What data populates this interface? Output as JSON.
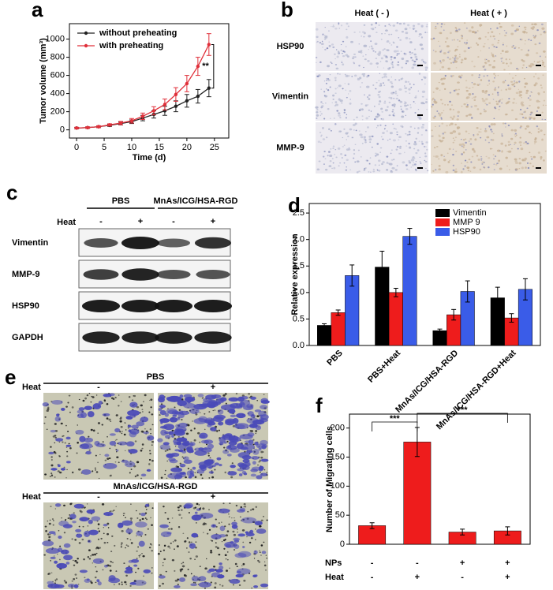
{
  "panel_letters": [
    "a",
    "b",
    "c",
    "d",
    "e",
    "f"
  ],
  "chart_data": [
    {
      "type": "line",
      "xlabel": "Time (d)",
      "ylabel": "Tumor volume (mm³)",
      "x": [
        0,
        2,
        4,
        6,
        8,
        10,
        12,
        14,
        16,
        18,
        20,
        22,
        24
      ],
      "series": [
        {
          "name": "without preheating",
          "color": "#222222",
          "values": [
            20,
            25,
            35,
            50,
            70,
            90,
            130,
            170,
            210,
            260,
            320,
            370,
            460
          ],
          "errors": [
            8,
            8,
            10,
            12,
            15,
            20,
            30,
            40,
            50,
            60,
            70,
            75,
            95
          ]
        },
        {
          "name": "with preheating",
          "color": "#e0303a",
          "values": [
            20,
            25,
            35,
            55,
            75,
            100,
            150,
            210,
            280,
            390,
            510,
            700,
            940
          ],
          "errors": [
            8,
            8,
            10,
            12,
            18,
            25,
            35,
            45,
            60,
            75,
            90,
            100,
            120
          ]
        }
      ],
      "xlim": [
        -1.3,
        27.6
      ],
      "xticks": [
        0,
        5,
        10,
        15,
        20,
        25
      ],
      "ylim": [
        -90,
        1170
      ],
      "yticks": [
        0,
        200,
        400,
        600,
        800,
        1000
      ],
      "legend": "upper left",
      "grid": false,
      "annotations": [
        "**"
      ]
    },
    {
      "type": "bar",
      "ylabel": "Relative expression",
      "categories": [
        "PBS",
        "PBS+Heat",
        "MnAs/ICG/HSA-RGD",
        "MnAs/ICG/HSA-RGD+Heat"
      ],
      "series": [
        {
          "name": "Vimentin",
          "color": "#000000",
          "values": [
            0.38,
            1.48,
            0.28,
            0.9
          ],
          "errors": [
            0.03,
            0.3,
            0.03,
            0.2
          ]
        },
        {
          "name": "MMP 9",
          "color": "#ee1c1c",
          "values": [
            0.62,
            1.0,
            0.58,
            0.52
          ],
          "errors": [
            0.05,
            0.08,
            0.1,
            0.08
          ]
        },
        {
          "name": "HSP90",
          "color": "#3a5ce8",
          "values": [
            1.32,
            2.06,
            1.02,
            1.06
          ],
          "errors": [
            0.2,
            0.15,
            0.2,
            0.2
          ]
        }
      ],
      "ylim": [
        0,
        2.68
      ],
      "yticks": [
        {
          "value": 0,
          "label": "0.0"
        },
        {
          "value": 0.5,
          "label": "0.5"
        },
        {
          "value": 1,
          "label": "1.0"
        },
        {
          "value": 1.5,
          "label": "1.5"
        },
        {
          "value": 2,
          "label": "2.0"
        },
        {
          "value": 2.5,
          "label": "2.5"
        }
      ],
      "legend": "upper right",
      "grid": false
    },
    {
      "type": "bar",
      "ylabel": "Number of Migrating cells",
      "categories": [
        null,
        null,
        null,
        null
      ],
      "series": [
        {
          "color": "#ee1c1c",
          "values": [
            32,
            176,
            21,
            23
          ],
          "errors": [
            5,
            25,
            5,
            7
          ]
        }
      ],
      "ylim": [
        0,
        224
      ],
      "yticks": [
        0,
        50,
        100,
        150,
        200
      ],
      "grid": false,
      "rows": [
        {
          "label": "NPs",
          "signs": [
            "-",
            "-",
            "+",
            "+"
          ]
        },
        {
          "label": "Heat",
          "signs": [
            "-",
            "+",
            "-",
            "+"
          ]
        }
      ],
      "annotations": [
        "***",
        "***"
      ]
    }
  ],
  "ihc": {
    "columns": [
      "Heat ( - )",
      "Heat ( + )"
    ],
    "rows": [
      "HSP90",
      "Vimentin",
      "MMP-9"
    ]
  },
  "western_blot": {
    "groups": [
      "PBS",
      "MnAs/ICG/HSA-RGD"
    ],
    "heat_label": "Heat",
    "heat_signs": [
      "-",
      "+",
      "-",
      "+"
    ],
    "rows": [
      "Vimentin",
      "MMP-9",
      "HSP90",
      "GAPDH"
    ]
  },
  "migration": {
    "heat_label": "Heat",
    "panels": [
      {
        "group": "PBS",
        "signs": [
          "-",
          "+"
        ]
      },
      {
        "group": "MnAs/ICG/HSA-RGD",
        "signs": [
          "-",
          "+"
        ]
      }
    ]
  }
}
